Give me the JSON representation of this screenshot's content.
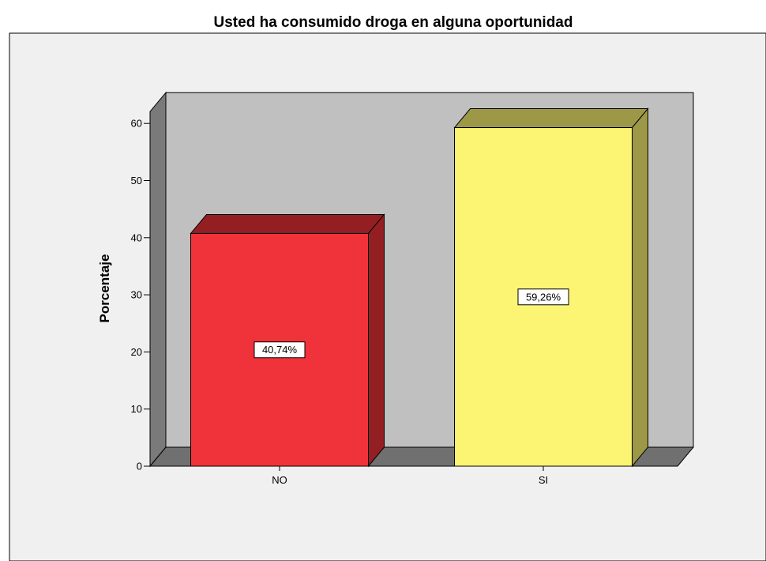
{
  "chart_data": {
    "type": "bar",
    "title": "Usted ha consumido droga en alguna oportunidad",
    "xlabel": "",
    "ylabel": "Porcentaje",
    "categories": [
      "NO",
      "SI"
    ],
    "values": [
      40.74,
      59.26
    ],
    "data_labels": [
      "40,74%",
      "59,26%"
    ],
    "ylim": [
      0,
      60
    ],
    "yticks": [
      0,
      10,
      20,
      30,
      40,
      50,
      60
    ],
    "grid": false,
    "legend": "none",
    "style": "3d",
    "colors": {
      "bars": [
        "#f0323a",
        "#fbf573"
      ],
      "bar_sides": [
        "#931f22",
        "#9c9847"
      ],
      "back_wall": "#c0c0c0",
      "side_wall": "#7a7a7a",
      "floor": "#707070",
      "outer_background": "#f0f0f0"
    }
  }
}
